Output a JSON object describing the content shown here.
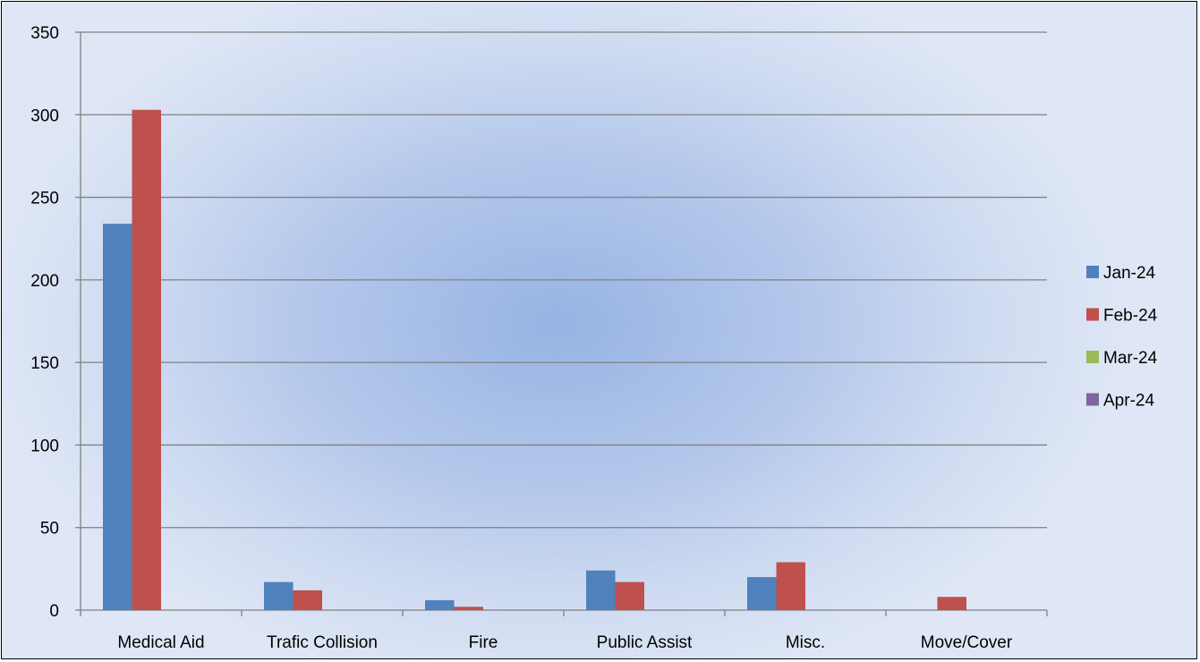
{
  "chart_data": {
    "type": "bar",
    "title": "",
    "xlabel": "",
    "ylabel": "",
    "categories": [
      "Medical Aid",
      "Trafic Collision",
      "Fire",
      "Public Assist",
      "Misc.",
      "Move/Cover"
    ],
    "series": [
      {
        "name": "Jan-24",
        "color": "#4f81bd",
        "values": [
          234,
          17,
          6,
          24,
          20,
          0
        ]
      },
      {
        "name": "Feb-24",
        "color": "#c0504d",
        "values": [
          303,
          12,
          2,
          17,
          29,
          8
        ]
      },
      {
        "name": "Mar-24",
        "color": "#9bbb59",
        "values": [
          0,
          0,
          0,
          0,
          0,
          0
        ]
      },
      {
        "name": "Apr-24",
        "color": "#8064a2",
        "values": [
          0,
          0,
          0,
          0,
          0,
          0
        ]
      }
    ],
    "ylim": [
      0,
      350
    ],
    "yticks": [
      0,
      50,
      100,
      150,
      200,
      250,
      300,
      350
    ],
    "grid": true,
    "legend_position": "right"
  }
}
